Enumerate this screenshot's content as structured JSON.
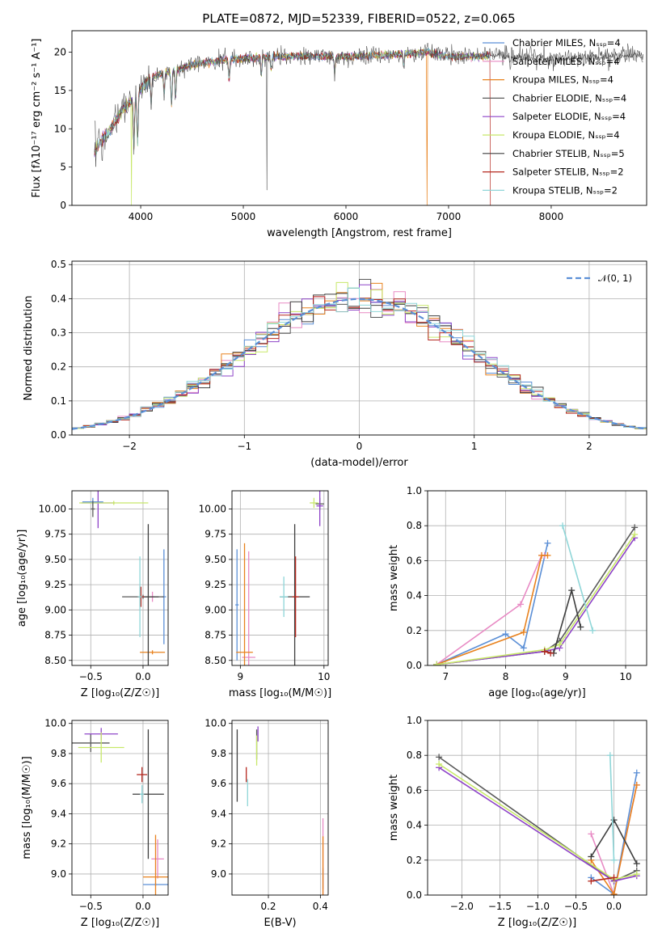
{
  "colors": [
    "#5b8fd6",
    "#e88ac4",
    "#e8821e",
    "#5a5a5a",
    "#8e44c8",
    "#c8e86a",
    "#3e3e3e",
    "#b5281f",
    "#8fd6d8"
  ],
  "chart_data": [
    {
      "id": "spectrum",
      "type": "line",
      "title": "PLATE=0872, MJD=52339, FIBERID=0522, z=0.065",
      "xlabel": "wavelength [Angstrom, rest frame]",
      "ylabel": "Flux [fλ10⁻¹⁷ erg cm⁻² s⁻¹ A⁻¹]",
      "xlim": [
        3330,
        8930
      ],
      "ylim": [
        0,
        22.8
      ],
      "xticks": [
        4000,
        5000,
        6000,
        7000,
        8000
      ],
      "yticks": [
        0,
        5,
        10,
        15,
        20
      ],
      "legend_position": "upper right",
      "legend": [
        "Chabrier MILES, Nₛₛₚ=4",
        "Salpeter MILES, Nₛₛₚ=4",
        "Kroupa MILES, Nₛₛₚ=4",
        "Chabrier ELODIE, Nₛₛₚ=4",
        "Salpeter ELODIE, Nₛₛₚ=4",
        "Kroupa ELODIE, Nₛₛₚ=4",
        "Chabrier STELIB, Nₛₛₚ=5",
        "Salpeter STELIB, Nₛₛₚ=2",
        "Kroupa STELIB, Nₛₛₚ=2"
      ],
      "continuum": {
        "x": [
          3550,
          3650,
          3750,
          3850,
          3950,
          4050,
          4150,
          4300,
          4500,
          4700,
          5000,
          5300,
          5600,
          6000,
          6500,
          6800,
          7000,
          7400,
          7800,
          8200,
          8700,
          8900
        ],
        "y": [
          7,
          9,
          11,
          13,
          14,
          16,
          17,
          17.5,
          18.3,
          18.8,
          19.2,
          19.4,
          19.5,
          19.4,
          19.7,
          20,
          19.4,
          19.5,
          19.3,
          19.2,
          19.5,
          19.6
        ]
      }
    },
    {
      "id": "residuals",
      "type": "histogram",
      "xlabel": "(data-model)/error",
      "ylabel": "Normed distribution",
      "xlim": [
        -2.5,
        2.5
      ],
      "ylim": [
        0,
        0.51
      ],
      "xticks": [
        -2,
        -1,
        0,
        1,
        2
      ],
      "yticks": [
        0.0,
        0.1,
        0.2,
        0.3,
        0.4,
        0.5
      ],
      "grid": true,
      "reference_curve": {
        "name": "𝒩(0, 1)",
        "mean": 0,
        "sigma": 1
      },
      "bin_width": 0.1
    },
    {
      "id": "age-vs-Z",
      "type": "errorbar",
      "xlabel": "Z [log₁₀(Z/Z☉)]",
      "ylabel": "age  [log₁₀(age/yr)]",
      "xlim": [
        -0.68,
        0.24
      ],
      "ylim": [
        8.45,
        10.18
      ],
      "xticks": [
        -0.5,
        0.0
      ],
      "yticks": [
        8.5,
        8.75,
        9.0,
        9.25,
        9.5,
        9.75,
        10.0
      ],
      "grid": true,
      "points": [
        {
          "x": 0.2,
          "y": 9.13,
          "xerr": 0.02,
          "yerr": 0.47,
          "c": 0
        },
        {
          "x": 0.09,
          "y": 9.13,
          "xerr": 0.02,
          "yerr": 0.05,
          "c": 1
        },
        {
          "x": 0.09,
          "y": 8.58,
          "xerr": 0.12,
          "yerr": 0.02,
          "c": 2
        },
        {
          "x": 0.0,
          "y": 9.13,
          "xerr": 0.2,
          "yerr": 0.02,
          "c": 3
        },
        {
          "x": -0.43,
          "y": 10.06,
          "xerr": 0.16,
          "yerr": 0.25,
          "c": 4
        },
        {
          "x": -0.28,
          "y": 10.06,
          "xerr": 0.33,
          "yerr": 0.02,
          "c": 5
        },
        {
          "x": 0.05,
          "y": 9.13,
          "xerr": 0.1,
          "yerr": 0.72,
          "c": 6
        },
        {
          "x": -0.02,
          "y": 9.13,
          "xerr": 0.03,
          "yerr": 0.1,
          "c": 7
        },
        {
          "x": -0.03,
          "y": 9.13,
          "xerr": 0.02,
          "yerr": 0.4,
          "c": 8
        },
        {
          "x": -0.48,
          "y": 10.07,
          "xerr": 0.1,
          "yerr": 0.04,
          "c": 0
        },
        {
          "x": -0.48,
          "y": 10.0,
          "xerr": 0.02,
          "yerr": 0.08,
          "c": 3
        }
      ]
    },
    {
      "id": "age-vs-mass",
      "type": "errorbar",
      "xlabel": "mass [log₁₀(M/M☉)]",
      "ylabel": "",
      "xlim": [
        8.9,
        10.05
      ],
      "ylim": [
        8.45,
        10.18
      ],
      "xticks": [
        9,
        10
      ],
      "yticks": [
        8.5,
        8.75,
        9.0,
        9.25,
        9.5,
        9.75,
        10.0
      ],
      "grid": true,
      "points": [
        {
          "x": 8.96,
          "y": 9.05,
          "xerr": 0.02,
          "yerr": 0.55,
          "c": 0
        },
        {
          "x": 9.1,
          "y": 8.53,
          "xerr": 0.08,
          "yerr": 1.05,
          "c": 1
        },
        {
          "x": 9.05,
          "y": 8.58,
          "xerr": 0.1,
          "yerr": 1.08,
          "c": 2
        },
        {
          "x": 9.95,
          "y": 10.05,
          "xerr": 0.05,
          "yerr": 0.06,
          "c": 3
        },
        {
          "x": 9.95,
          "y": 10.03,
          "xerr": 0.04,
          "yerr": 0.2,
          "c": 4
        },
        {
          "x": 9.88,
          "y": 10.06,
          "xerr": 0.05,
          "yerr": 0.05,
          "c": 5
        },
        {
          "x": 9.65,
          "y": 9.13,
          "xerr": 0.18,
          "yerr": 0.72,
          "c": 6
        },
        {
          "x": 9.66,
          "y": 9.13,
          "xerr": 0.04,
          "yerr": 0.4,
          "c": 7
        },
        {
          "x": 9.52,
          "y": 9.13,
          "xerr": 0.05,
          "yerr": 0.2,
          "c": 8
        }
      ]
    },
    {
      "id": "weight-vs-age",
      "type": "line",
      "xlabel": "age  [log₁₀(age/yr)]",
      "ylabel": "mass weight",
      "xlim": [
        6.7,
        10.35
      ],
      "ylim": [
        0.0,
        1.0
      ],
      "xticks": [
        7,
        8,
        9,
        10
      ],
      "yticks": [
        0.0,
        0.2,
        0.4,
        0.6,
        0.8,
        1.0
      ],
      "grid": true,
      "series": [
        {
          "c": 0,
          "x": [
            6.85,
            8.0,
            8.3,
            8.7
          ],
          "y": [
            0.005,
            0.18,
            0.1,
            0.7
          ]
        },
        {
          "c": 1,
          "x": [
            6.85,
            8.25,
            8.6,
            8.65
          ],
          "y": [
            0.005,
            0.35,
            0.63,
            0.63
          ]
        },
        {
          "c": 2,
          "x": [
            6.85,
            8.3,
            8.6,
            8.7
          ],
          "y": [
            0.005,
            0.19,
            0.63,
            0.63
          ]
        },
        {
          "c": 3,
          "x": [
            6.85,
            8.65,
            8.9,
            10.15
          ],
          "y": [
            0.005,
            0.08,
            0.14,
            0.79
          ]
        },
        {
          "c": 4,
          "x": [
            6.85,
            8.65,
            8.9,
            10.15
          ],
          "y": [
            0.005,
            0.08,
            0.1,
            0.73
          ]
        },
        {
          "c": 5,
          "x": [
            6.85,
            8.65,
            8.9,
            10.15
          ],
          "y": [
            0.005,
            0.09,
            0.12,
            0.75
          ]
        },
        {
          "c": 6,
          "x": [
            8.65,
            8.8,
            9.1,
            9.25
          ],
          "y": [
            0.08,
            0.07,
            0.43,
            0.22
          ]
        },
        {
          "c": 7,
          "x": [
            8.65,
            8.75
          ],
          "y": [
            0.08,
            0.07
          ]
        },
        {
          "c": 8,
          "x": [
            8.95,
            9.45
          ],
          "y": [
            0.8,
            0.2
          ]
        }
      ]
    },
    {
      "id": "mass-vs-Z",
      "type": "errorbar",
      "xlabel": "Z [log₁₀(Z/Z☉)]",
      "ylabel": "mass [log₁₀(M/M☉)]",
      "xlim": [
        -0.68,
        0.24
      ],
      "ylim": [
        8.86,
        10.02
      ],
      "xticks": [
        -0.5,
        0.0
      ],
      "yticks": [
        9.0,
        9.2,
        9.4,
        9.6,
        9.8,
        10.0
      ],
      "grid": true,
      "points": [
        {
          "x": 0.12,
          "y": 8.93,
          "xerr": 0.12,
          "yerr": 0.01,
          "c": 0
        },
        {
          "x": 0.14,
          "y": 9.1,
          "xerr": 0.06,
          "yerr": 0.13,
          "c": 1
        },
        {
          "x": 0.12,
          "y": 8.98,
          "xerr": 0.12,
          "yerr": 0.28,
          "c": 2
        },
        {
          "x": -0.5,
          "y": 9.87,
          "xerr": 0.18,
          "yerr": 0.06,
          "c": 3
        },
        {
          "x": -0.4,
          "y": 9.93,
          "xerr": 0.16,
          "yerr": 0.04,
          "c": 4
        },
        {
          "x": -0.4,
          "y": 9.84,
          "xerr": 0.22,
          "yerr": 0.1,
          "c": 5
        },
        {
          "x": 0.05,
          "y": 9.53,
          "xerr": 0.15,
          "yerr": 0.43,
          "c": 6
        },
        {
          "x": -0.01,
          "y": 9.66,
          "xerr": 0.05,
          "yerr": 0.05,
          "c": 7
        },
        {
          "x": -0.01,
          "y": 9.53,
          "xerr": 0.02,
          "yerr": 0.06,
          "c": 8
        }
      ]
    },
    {
      "id": "mass-vs-EBV",
      "type": "errorbar",
      "xlabel": "E(B-V)",
      "ylabel": "",
      "xlim": [
        0.06,
        0.43
      ],
      "ylim": [
        8.86,
        10.02
      ],
      "xticks": [
        0.2,
        0.4
      ],
      "yticks": [
        9.0,
        9.2,
        9.4,
        9.6,
        9.8,
        10.0
      ],
      "grid": true,
      "points": [
        {
          "x": 0.41,
          "y": 8.97,
          "xerr": 0.0,
          "yerr": 0.07,
          "c": 0
        },
        {
          "x": 0.41,
          "y": 9.1,
          "xerr": 0.0,
          "yerr": 0.27,
          "c": 1
        },
        {
          "x": 0.41,
          "y": 9.0,
          "xerr": 0.0,
          "yerr": 0.25,
          "c": 2
        },
        {
          "x": 0.155,
          "y": 9.86,
          "xerr": 0.0,
          "yerr": 0.1,
          "c": 3
        },
        {
          "x": 0.16,
          "y": 9.93,
          "xerr": 0.0,
          "yerr": 0.05,
          "c": 4
        },
        {
          "x": 0.155,
          "y": 9.82,
          "xerr": 0.0,
          "yerr": 0.1,
          "c": 5
        },
        {
          "x": 0.08,
          "y": 9.72,
          "xerr": 0.0,
          "yerr": 0.24,
          "c": 6
        },
        {
          "x": 0.115,
          "y": 9.66,
          "xerr": 0.0,
          "yerr": 0.05,
          "c": 7
        },
        {
          "x": 0.12,
          "y": 9.54,
          "xerr": 0.0,
          "yerr": 0.09,
          "c": 8
        }
      ]
    },
    {
      "id": "weight-vs-Z",
      "type": "line",
      "xlabel": "Z [log₁₀(Z/Z☉)]",
      "ylabel": "mass weight",
      "xlim": [
        -2.45,
        0.43
      ],
      "ylim": [
        0.0,
        1.0
      ],
      "xticks": [
        -2.0,
        -1.5,
        -1.0,
        -0.5,
        0.0
      ],
      "yticks": [
        0.0,
        0.2,
        0.4,
        0.6,
        0.8,
        1.0
      ],
      "grid": true,
      "series": [
        {
          "c": 0,
          "x": [
            -0.3,
            0.0,
            0.3
          ],
          "y": [
            0.1,
            0.005,
            0.7
          ]
        },
        {
          "c": 1,
          "x": [
            -0.3,
            0.0,
            0.3
          ],
          "y": [
            0.35,
            0.005,
            0.63
          ]
        },
        {
          "c": 2,
          "x": [
            -0.3,
            0.0,
            0.3
          ],
          "y": [
            0.2,
            0.005,
            0.63
          ]
        },
        {
          "c": 3,
          "x": [
            -2.3,
            0.0,
            0.3
          ],
          "y": [
            0.79,
            0.08,
            0.14
          ]
        },
        {
          "c": 4,
          "x": [
            -2.3,
            0.0,
            0.3
          ],
          "y": [
            0.73,
            0.08,
            0.11
          ]
        },
        {
          "c": 5,
          "x": [
            -2.3,
            0.0,
            0.3
          ],
          "y": [
            0.75,
            0.09,
            0.12
          ]
        },
        {
          "c": 6,
          "x": [
            -0.3,
            0.0,
            0.3
          ],
          "y": [
            0.22,
            0.43,
            0.18
          ]
        },
        {
          "c": 7,
          "x": [
            -0.3,
            0.0
          ],
          "y": [
            0.08,
            0.1
          ]
        },
        {
          "c": 8,
          "x": [
            -0.05,
            0.0
          ],
          "y": [
            0.8,
            0.2
          ]
        }
      ]
    }
  ]
}
